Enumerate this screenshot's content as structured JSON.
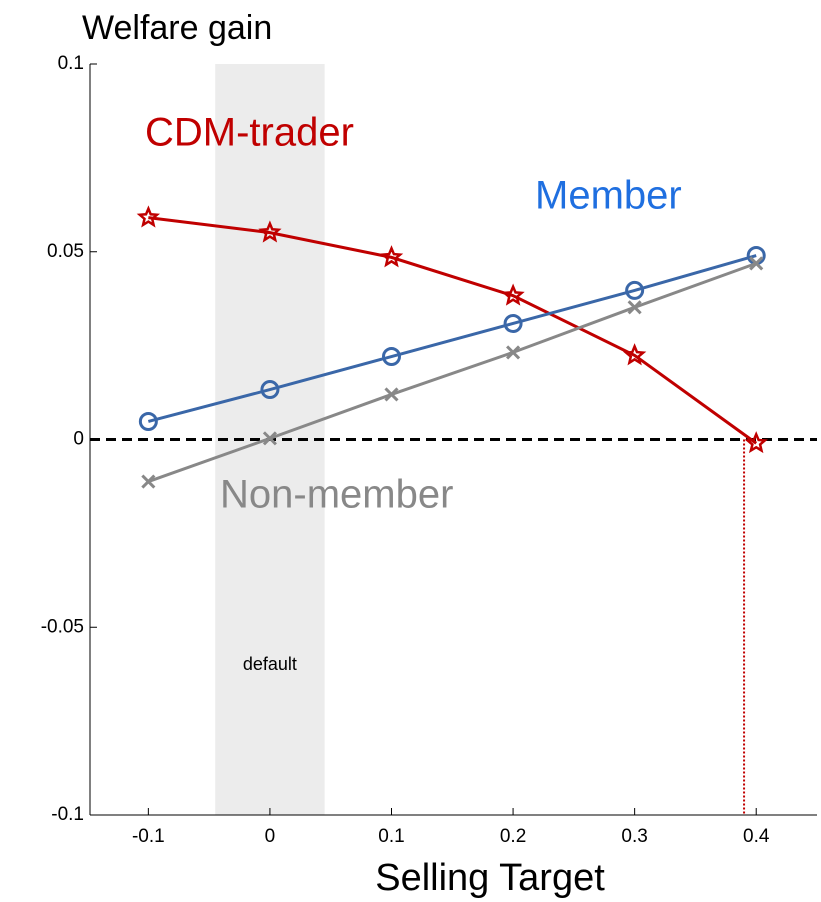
{
  "chart_data": {
    "type": "line",
    "title": "Welfare gain",
    "x_label": "Selling Target",
    "x": [
      -0.1,
      0,
      0.1,
      0.2,
      0.3,
      0.4
    ],
    "series": [
      {
        "name": "CDM-trader",
        "color": "#c00000",
        "marker": "star",
        "values": [
          0.0591,
          0.0551,
          0.0485,
          0.0383,
          0.0224,
          -0.001
        ]
      },
      {
        "name": "Member",
        "color": "#3a67a8",
        "marker": "circle",
        "values": [
          0.0048,
          0.0133,
          0.0221,
          0.0309,
          0.0397,
          0.049
        ]
      },
      {
        "name": "Non-member",
        "color": "#888888",
        "marker": "x",
        "values": [
          -0.0112,
          0.0003,
          0.012,
          0.0232,
          0.0352,
          0.0469
        ]
      }
    ],
    "label_colors": [
      "#c00000",
      "#1f6fe0",
      "#888888"
    ],
    "shade": [
      -0.045,
      0.045
    ],
    "shade_label": "default",
    "zero_crossing": 0.39,
    "xlim": [
      -0.148,
      0.45
    ],
    "ylim": [
      -0.1,
      0.1
    ],
    "xticks": [
      -0.1,
      0,
      0.1,
      0.2,
      0.3,
      0.4
    ],
    "yticks": [
      -0.1,
      -0.05,
      0,
      0.05,
      0.1
    ]
  }
}
